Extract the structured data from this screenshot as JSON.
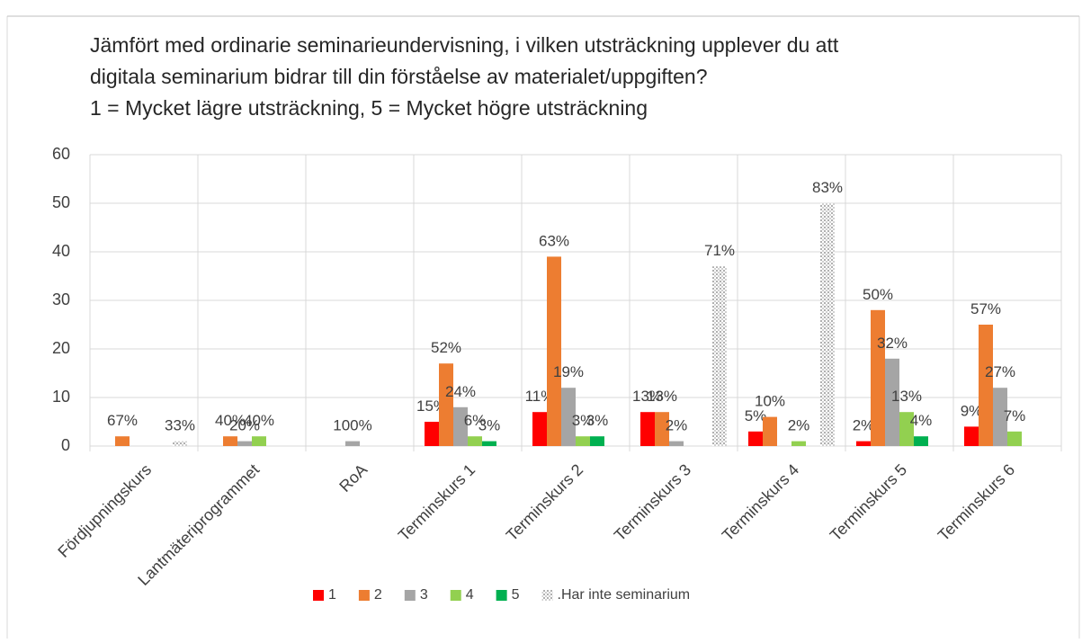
{
  "chart_data": {
    "type": "bar",
    "title": [
      "Jämfört med ordinarie seminarieundervisning, i vilken utsträckning upplever du att",
      "digitala seminarium bidrar till din förståelse av materialet/uppgiften?",
      "1 = Mycket lägre utsträckning, 5 = Mycket högre utsträckning"
    ],
    "categories": [
      "Fördjupningskurs",
      "Lantmäteriprogrammet",
      "RoA",
      "Terminskurs 1",
      "Terminskurs 2",
      "Terminskurs 3",
      "Terminskurs 4",
      "Terminskurs 5",
      "Terminskurs 6"
    ],
    "series": [
      {
        "name": "1",
        "color": "#ff0000",
        "values": [
          0,
          0,
          0,
          5,
          7,
          7,
          3,
          1,
          4
        ],
        "value_labels": [
          null,
          null,
          null,
          "15%",
          "11%",
          "13%",
          "5%",
          "2%",
          "9%"
        ]
      },
      {
        "name": "2",
        "color": "#ed7d31",
        "values": [
          2,
          2,
          0,
          17,
          39,
          7,
          6,
          28,
          25
        ],
        "value_labels": [
          "67%",
          "40%",
          null,
          "52%",
          "63%",
          "13%",
          "10%",
          "50%",
          "57%"
        ]
      },
      {
        "name": "3",
        "color": "#a5a5a5",
        "values": [
          0,
          1,
          1,
          8,
          12,
          1,
          0,
          18,
          12
        ],
        "value_labels": [
          null,
          "20%",
          "100%",
          "24%",
          "19%",
          "2%",
          null,
          "32%",
          "27%"
        ]
      },
      {
        "name": "4",
        "color": "#92d050",
        "values": [
          0,
          2,
          0,
          2,
          2,
          0,
          1,
          7,
          3
        ],
        "value_labels": [
          null,
          "40%",
          null,
          "6%",
          "3%",
          null,
          "2%",
          "13%",
          "7%"
        ]
      },
      {
        "name": "5",
        "color": "#00b050",
        "values": [
          0,
          0,
          0,
          1,
          2,
          0,
          0,
          2,
          0
        ],
        "value_labels": [
          null,
          null,
          null,
          "3%",
          "3%",
          null,
          null,
          "4%",
          null
        ]
      },
      {
        "name": ".Har inte seminarium",
        "color": "#c8c8c8",
        "pattern": "dotted",
        "values": [
          1,
          0,
          0,
          0,
          0,
          37,
          50,
          0,
          0
        ],
        "value_labels": [
          "33%",
          null,
          null,
          null,
          null,
          "71%",
          "83%",
          null,
          null
        ]
      }
    ],
    "ylim": [
      0,
      60
    ],
    "yticks": [
      0,
      10,
      20,
      30,
      40,
      50,
      60
    ],
    "grid": true,
    "legend": "bottom"
  }
}
